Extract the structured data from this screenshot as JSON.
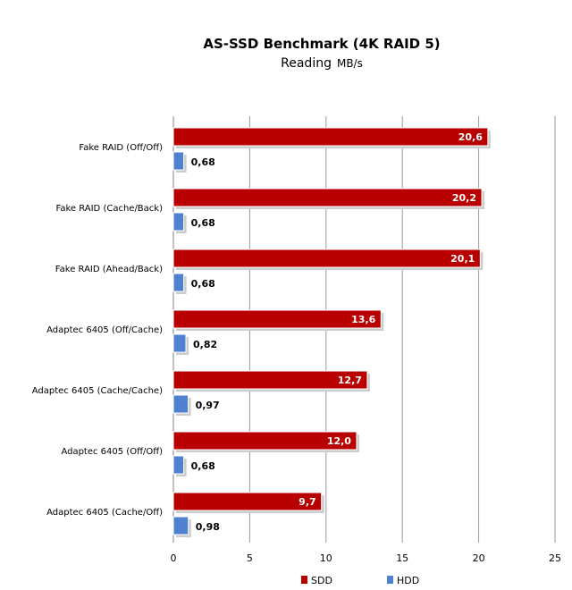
{
  "chart_data": {
    "type": "bar",
    "orientation": "horizontal",
    "title": "AS-SSD Benchmark (4K RAID 5)",
    "subtitle": "Reading",
    "unit": "MB/s",
    "categories": [
      "Fake RAID (Off/Off)",
      "Fake RAID (Cache/Back)",
      "Fake RAID (Ahead/Back)",
      "Adaptec 6405 (Off/Cache)",
      "Adaptec 6405 (Cache/Cache)",
      "Adaptec 6405 (Off/Off)",
      "Adaptec 6405 (Cache/Off)"
    ],
    "series": [
      {
        "name": "SDD",
        "color": "#b80000",
        "values": [
          20.6,
          20.2,
          20.1,
          13.6,
          12.7,
          12.0,
          9.7
        ],
        "labels": [
          "20,6",
          "20,2",
          "20,1",
          "13,6",
          "12,7",
          "12,0",
          "9,7"
        ]
      },
      {
        "name": "HDD",
        "color": "#4f81d0",
        "values": [
          0.68,
          0.68,
          0.68,
          0.82,
          0.97,
          0.68,
          0.98
        ],
        "labels": [
          "0,68",
          "0,68",
          "0,68",
          "0,82",
          "0,97",
          "0,68",
          "0,98"
        ]
      }
    ],
    "xlim": [
      0,
      25
    ],
    "xticks": [
      "0",
      "5",
      "10",
      "15",
      "20",
      "25"
    ],
    "grid": true,
    "legend": "bottom"
  }
}
